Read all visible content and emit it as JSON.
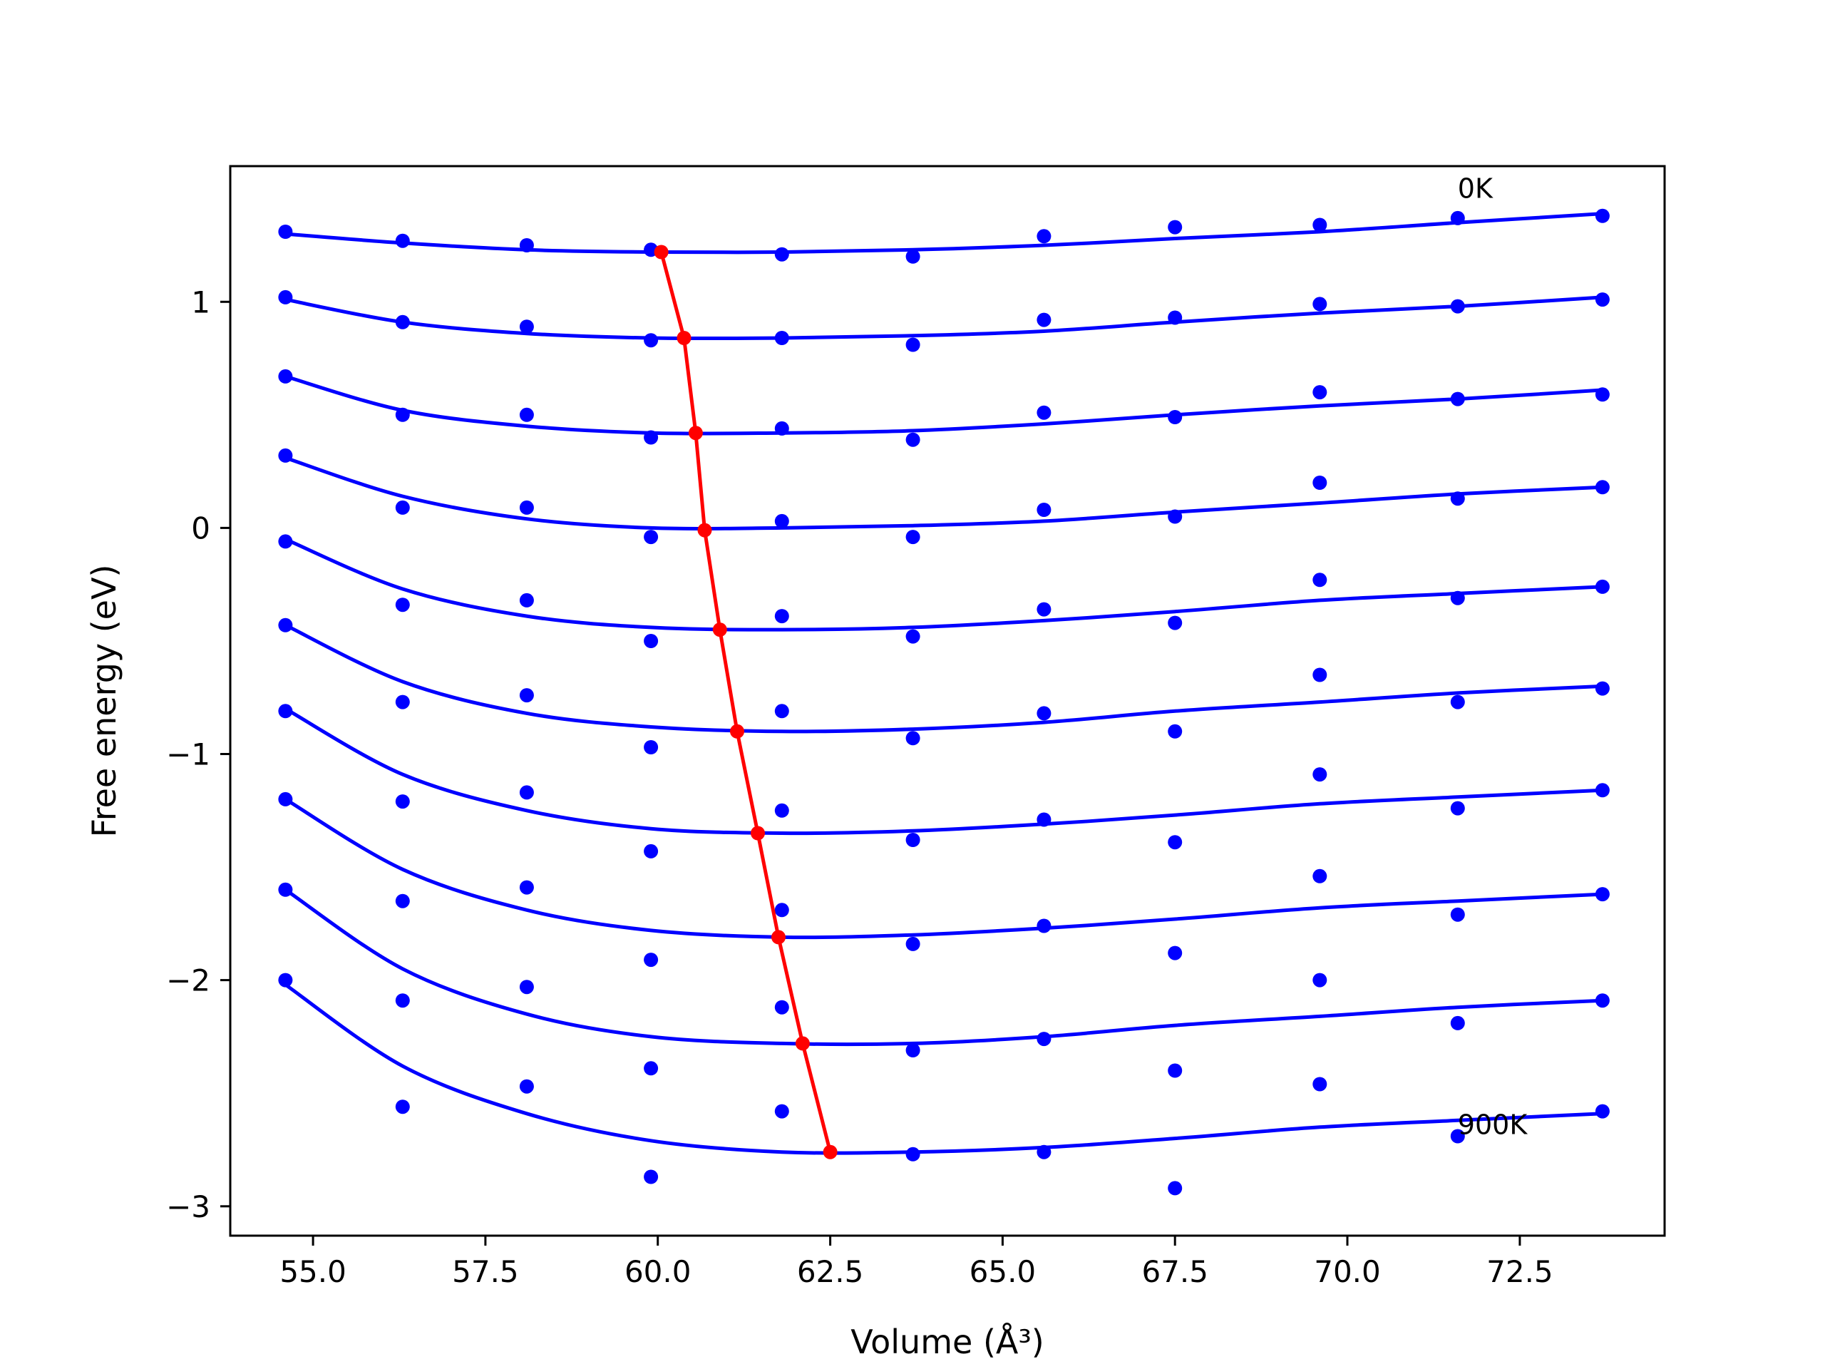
{
  "chart_data": {
    "type": "line",
    "xlabel": "Volume (Å³)",
    "ylabel": "Free energy (eV)",
    "xlim": [
      53.8,
      74.6
    ],
    "ylim": [
      -3.13,
      1.6
    ],
    "xticks": [
      "55.0",
      "57.5",
      "60.0",
      "62.5",
      "65.0",
      "67.5",
      "70.0",
      "72.5"
    ],
    "yticks": [
      "−3",
      "−2",
      "−1",
      "0",
      "1"
    ],
    "grid": false,
    "colors": {
      "points": "#0000ff",
      "curves": "#0000ff",
      "minimum_line": "#ff0000",
      "axes": "#000000"
    },
    "volumes": [
      54.6,
      56.3,
      58.1,
      59.9,
      61.8,
      63.7,
      65.6,
      67.5,
      69.6,
      71.6,
      73.7
    ],
    "series": [
      {
        "points": [
          1.31,
          1.27,
          1.25,
          1.23,
          1.21,
          1.2,
          1.29,
          1.33,
          1.34,
          1.37,
          1.38
        ]
      },
      {
        "points": [
          1.02,
          0.91,
          0.89,
          0.83,
          0.84,
          0.81,
          0.92,
          0.93,
          0.99,
          0.98,
          1.01
        ]
      },
      {
        "points": [
          0.67,
          0.5,
          0.5,
          0.4,
          0.44,
          0.39,
          0.51,
          0.49,
          0.6,
          0.57,
          0.59
        ]
      },
      {
        "points": [
          0.32,
          0.09,
          0.09,
          -0.04,
          0.03,
          -0.04,
          0.08,
          0.05,
          0.2,
          0.13,
          0.18
        ]
      },
      {
        "points": [
          -0.06,
          -0.34,
          -0.32,
          -0.5,
          -0.39,
          -0.48,
          -0.36,
          -0.42,
          -0.23,
          -0.31,
          -0.26
        ]
      },
      {
        "points": [
          -0.43,
          -0.77,
          -0.74,
          -0.97,
          -0.81,
          -0.93,
          -0.82,
          -0.9,
          -0.65,
          -0.77,
          -0.71
        ]
      },
      {
        "points": [
          -0.81,
          -1.21,
          -1.17,
          -1.43,
          -1.25,
          -1.38,
          -1.29,
          -1.39,
          -1.09,
          -1.24,
          -1.16
        ]
      },
      {
        "points": [
          -1.2,
          -1.65,
          -1.59,
          -1.91,
          -1.69,
          -1.84,
          -1.76,
          -1.88,
          -1.54,
          -1.71,
          -1.62
        ]
      },
      {
        "points": [
          -1.6,
          -2.09,
          -2.03,
          -2.39,
          -2.12,
          -2.31,
          -2.26,
          -2.4,
          -2.0,
          -2.19,
          -2.09
        ]
      },
      {
        "points": [
          -2.0,
          -2.56,
          -2.47,
          -2.87,
          -2.58,
          -2.77,
          -2.76,
          -2.92,
          -2.46,
          -2.69,
          -2.58
        ]
      }
    ],
    "fit_curves": [
      {
        "v": [
          54.6,
          56.3,
          58.1,
          59.9,
          61.8,
          63.7,
          65.6,
          67.5,
          69.6,
          71.6,
          73.7
        ],
        "f": [
          1.3,
          1.26,
          1.23,
          1.22,
          1.22,
          1.23,
          1.25,
          1.28,
          1.31,
          1.35,
          1.39
        ]
      },
      {
        "v": [
          54.6,
          56.3,
          58.1,
          59.9,
          61.8,
          63.7,
          65.6,
          67.5,
          69.6,
          71.6,
          73.7
        ],
        "f": [
          1.01,
          0.91,
          0.86,
          0.84,
          0.84,
          0.85,
          0.87,
          0.91,
          0.95,
          0.98,
          1.02
        ]
      },
      {
        "v": [
          54.6,
          56.3,
          58.1,
          59.9,
          61.8,
          63.7,
          65.6,
          67.5,
          69.6,
          71.6,
          73.7
        ],
        "f": [
          0.67,
          0.52,
          0.45,
          0.42,
          0.42,
          0.43,
          0.46,
          0.5,
          0.54,
          0.57,
          0.61
        ]
      },
      {
        "v": [
          54.6,
          56.3,
          58.1,
          59.9,
          61.8,
          63.7,
          65.6,
          67.5,
          69.6,
          71.6,
          73.7
        ],
        "f": [
          0.31,
          0.14,
          0.04,
          -0.0,
          -0.0,
          0.01,
          0.03,
          0.07,
          0.11,
          0.15,
          0.18
        ]
      },
      {
        "v": [
          54.6,
          56.3,
          58.1,
          59.9,
          61.8,
          63.7,
          65.6,
          67.5,
          69.6,
          71.6,
          73.7
        ],
        "f": [
          -0.05,
          -0.27,
          -0.39,
          -0.44,
          -0.45,
          -0.44,
          -0.41,
          -0.37,
          -0.32,
          -0.29,
          -0.26
        ]
      },
      {
        "v": [
          54.6,
          56.3,
          58.1,
          59.9,
          61.8,
          63.7,
          65.6,
          67.5,
          69.6,
          71.6,
          73.7
        ],
        "f": [
          -0.43,
          -0.68,
          -0.82,
          -0.88,
          -0.9,
          -0.89,
          -0.86,
          -0.81,
          -0.77,
          -0.73,
          -0.7
        ]
      },
      {
        "v": [
          54.6,
          56.3,
          58.1,
          59.9,
          61.8,
          63.7,
          65.6,
          67.5,
          69.6,
          71.6,
          73.7
        ],
        "f": [
          -0.8,
          -1.09,
          -1.25,
          -1.33,
          -1.35,
          -1.34,
          -1.31,
          -1.27,
          -1.22,
          -1.19,
          -1.16
        ]
      },
      {
        "v": [
          54.6,
          56.3,
          58.1,
          59.9,
          61.8,
          63.7,
          65.6,
          67.5,
          69.6,
          71.6,
          73.7
        ],
        "f": [
          -1.2,
          -1.51,
          -1.69,
          -1.78,
          -1.81,
          -1.8,
          -1.77,
          -1.73,
          -1.68,
          -1.65,
          -1.62
        ]
      },
      {
        "v": [
          54.6,
          56.3,
          58.1,
          59.9,
          61.8,
          63.7,
          65.6,
          67.5,
          69.6,
          71.6,
          73.7
        ],
        "f": [
          -1.6,
          -1.95,
          -2.15,
          -2.25,
          -2.28,
          -2.28,
          -2.25,
          -2.2,
          -2.16,
          -2.12,
          -2.09
        ]
      },
      {
        "v": [
          54.6,
          56.3,
          58.1,
          59.9,
          61.8,
          63.7,
          65.6,
          67.5,
          69.6,
          71.6,
          73.7
        ],
        "f": [
          -2.02,
          -2.38,
          -2.59,
          -2.71,
          -2.76,
          -2.76,
          -2.74,
          -2.7,
          -2.65,
          -2.62,
          -2.59
        ]
      }
    ],
    "minimum_line": {
      "v": [
        60.05,
        60.38,
        60.55,
        60.68,
        60.9,
        61.15,
        61.45,
        61.75,
        62.1,
        62.5
      ],
      "f": [
        1.22,
        0.84,
        0.42,
        -0.01,
        -0.45,
        -0.9,
        -1.35,
        -1.81,
        -2.28,
        -2.76
      ]
    },
    "annotations": [
      {
        "text": "0K",
        "v": 71.6,
        "f": 1.46
      },
      {
        "text": "900K",
        "v": 71.6,
        "f": -2.68
      }
    ]
  }
}
